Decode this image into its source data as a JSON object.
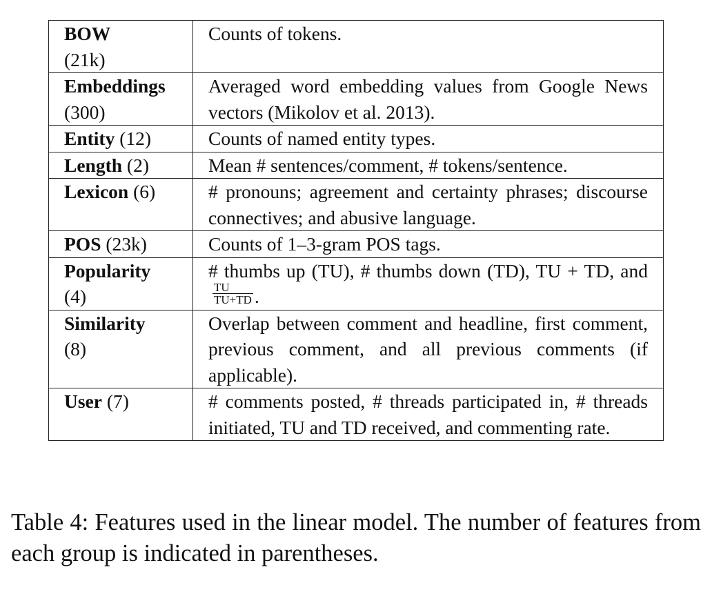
{
  "table": {
    "rows": [
      {
        "name": "BOW",
        "count": "(21k)",
        "count_break": true,
        "description": "Counts of tokens."
      },
      {
        "name": "Embeddings",
        "count": "(300)",
        "count_break": true,
        "description": "Averaged word embedding values from Google News vectors (Mikolov et al. 2013)."
      },
      {
        "name": "Entity",
        "count": "(12)",
        "count_break": false,
        "description": "Counts of named entity types."
      },
      {
        "name": "Length",
        "count": "(2)",
        "count_break": false,
        "description": "Mean # sentences/comment, # tokens/sentence."
      },
      {
        "name": "Lexicon",
        "count": "(6)",
        "count_break": false,
        "description": "# pronouns; agreement and certainty phrases; discourse connectives; and abusive language."
      },
      {
        "name": "POS",
        "count": "(23k)",
        "count_break": false,
        "description": "Counts of 1–3-gram POS tags."
      },
      {
        "name": "Popularity",
        "count": "(4)",
        "count_break": true,
        "description_pre": "# thumbs up (TU), # thumbs down (TD), TU + TD, and",
        "fraction_numerator": "TU",
        "fraction_denominator": "TU+TD",
        "description_post": "."
      },
      {
        "name": "Similarity",
        "count": "(8)",
        "count_break": true,
        "description": "Overlap between comment and headline, first comment, previous comment, and all previous comments (if applicable)."
      },
      {
        "name": "User",
        "count": "(7)",
        "count_break": false,
        "description": "# comments posted, # threads participated in, # threads initiated, TU and TD received, and com­menting rate."
      }
    ]
  },
  "caption": "Table 4: Features used in the linear model. The number of features from each group is indicated in parentheses."
}
